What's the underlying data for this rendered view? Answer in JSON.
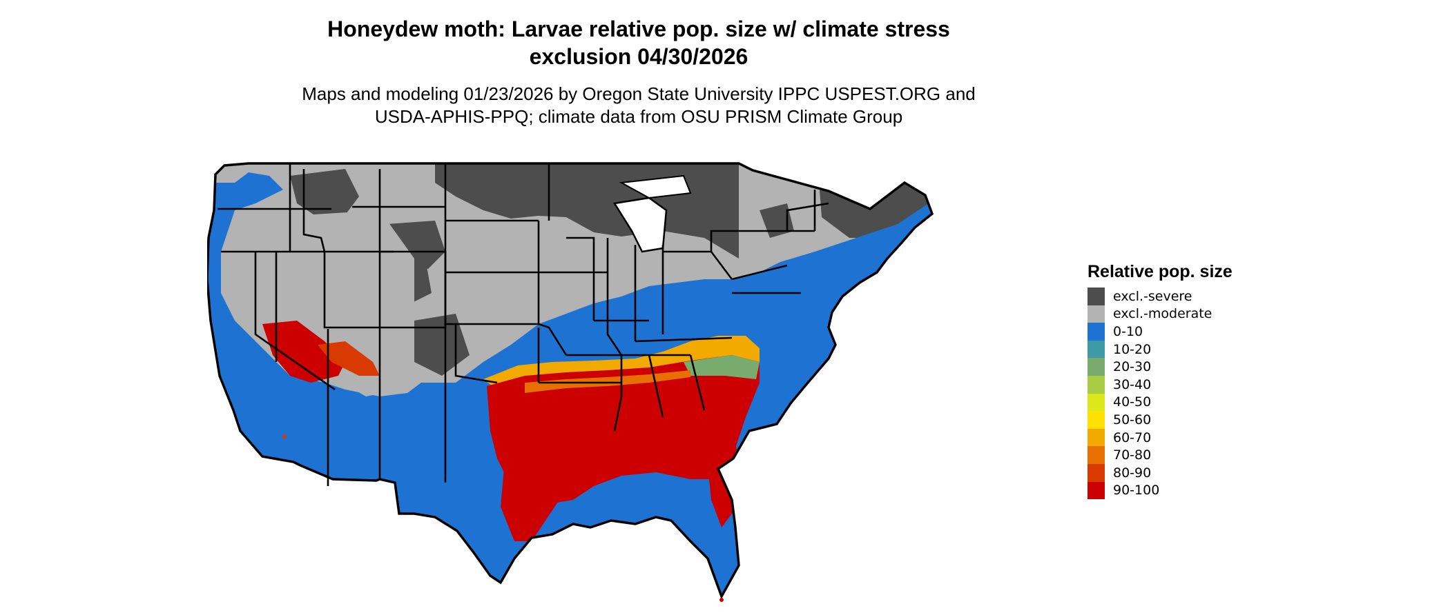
{
  "title_line1": "Honeydew moth: Larvae relative pop. size w/ climate stress",
  "title_line2": "exclusion 04/30/2026",
  "subtitle_line1": "Maps and modeling 01/23/2026 by Oregon State University IPPC USPEST.ORG and",
  "subtitle_line2": "USDA-APHIS-PPQ; climate data from OSU PRISM Climate Group",
  "legend": {
    "title": "Relative pop. size",
    "items": [
      {
        "label": "excl.-severe",
        "color": "#4d4d4d"
      },
      {
        "label": "excl.-moderate",
        "color": "#b3b3b3"
      },
      {
        "label": "0-10",
        "color": "#1e73d2"
      },
      {
        "label": "10-20",
        "color": "#3f9aa8"
      },
      {
        "label": "20-30",
        "color": "#7aab6e"
      },
      {
        "label": "30-40",
        "color": "#a8cc43"
      },
      {
        "label": "40-50",
        "color": "#dde81c"
      },
      {
        "label": "50-60",
        "color": "#ffe000"
      },
      {
        "label": "60-70",
        "color": "#f2a900"
      },
      {
        "label": "70-80",
        "color": "#e87000"
      },
      {
        "label": "80-90",
        "color": "#d83a00"
      },
      {
        "label": "90-100",
        "color": "#cc0000"
      }
    ]
  }
}
